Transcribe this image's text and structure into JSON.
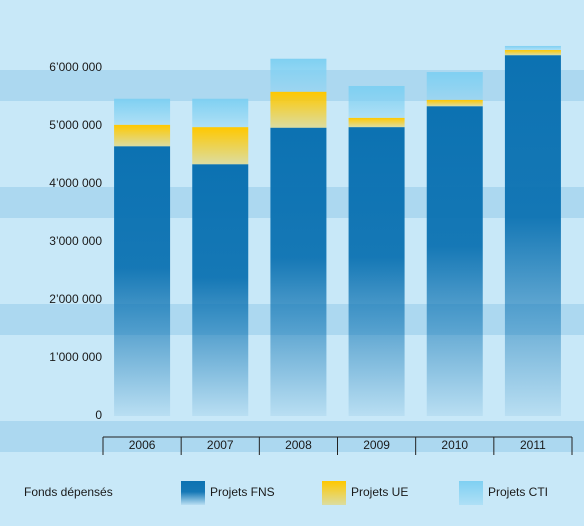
{
  "chart_data": {
    "type": "stacked_bar",
    "categories": [
      "2006",
      "2007",
      "2008",
      "2009",
      "2010",
      "2011"
    ],
    "legend_title": "Fonds dépensés",
    "series": [
      {
        "name": "Projets FNS",
        "color": "#0c72b2",
        "values": [
          4650000,
          4340000,
          4970000,
          4980000,
          5340000,
          6220000
        ]
      },
      {
        "name": "Projets UE",
        "color": "#ffc800",
        "values": [
          370000,
          640000,
          620000,
          160000,
          110000,
          90000
        ]
      },
      {
        "name": "Projets CTI",
        "color": "#7fd0f2",
        "values": [
          450000,
          490000,
          570000,
          550000,
          480000,
          70000
        ]
      }
    ],
    "ylim": [
      0,
      7000000
    ],
    "yticks": [
      0,
      {
        "value": 1000000,
        "label": "1’000 000"
      },
      {
        "value": 2000000,
        "label": "2’000 000"
      },
      {
        "value": 3000000,
        "label": "3’000 000"
      },
      {
        "value": 4000000,
        "label": "4’000 000"
      },
      {
        "value": 5000000,
        "label": "5’000 000"
      },
      {
        "value": 6000000,
        "label": "6’000 000"
      }
    ],
    "legend": "bottom"
  }
}
